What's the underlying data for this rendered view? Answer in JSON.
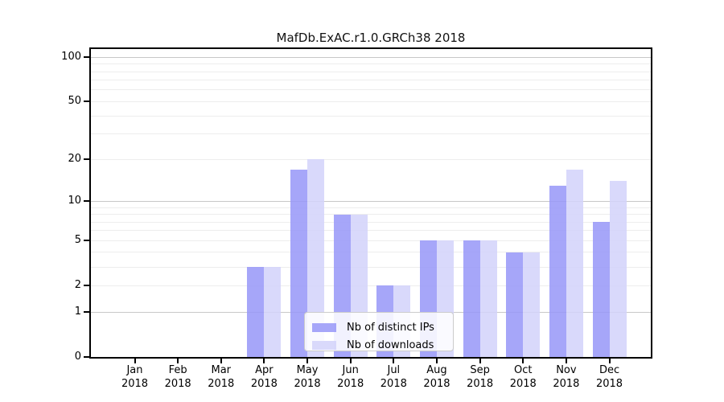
{
  "chart_data": {
    "type": "bar",
    "title": "MafDb.ExAC.r1.0.GRCh38 2018",
    "categories": [
      "Jan 2018",
      "Feb 2018",
      "Mar 2018",
      "Apr 2018",
      "May 2018",
      "Jun 2018",
      "Jul 2018",
      "Aug 2018",
      "Sep 2018",
      "Oct 2018",
      "Nov 2018",
      "Dec 2018"
    ],
    "series": [
      {
        "name": "Nb of distinct IPs",
        "color": "rgba(150,150,248,0.85)",
        "values": [
          0,
          0,
          0,
          3,
          17,
          8,
          2,
          5,
          5,
          4,
          13,
          7
        ]
      },
      {
        "name": "Nb of downloads",
        "color": "rgba(210,210,250,0.85)",
        "values": [
          0,
          0,
          0,
          3,
          20,
          8,
          2,
          5,
          5,
          4,
          17,
          14
        ]
      }
    ],
    "xlabel": "",
    "ylabel": "",
    "yscale": "log1p",
    "ylim": [
      0,
      114
    ],
    "y_tick_values": [
      100,
      50,
      20,
      10,
      5,
      2,
      1,
      0
    ],
    "y_major_grid_values": [
      1,
      10,
      100
    ],
    "y_minor_grid_values": [
      2,
      3,
      4,
      5,
      6,
      7,
      8,
      9,
      20,
      30,
      40,
      50,
      60,
      70,
      80,
      90
    ],
    "grid": "horizontal",
    "legend_position": "inside-bottom-center"
  },
  "colors": {
    "major_grid": "#c8c8c8",
    "minor_grid": "#ededed",
    "axis_frame": "#000000",
    "text": "#000000"
  }
}
